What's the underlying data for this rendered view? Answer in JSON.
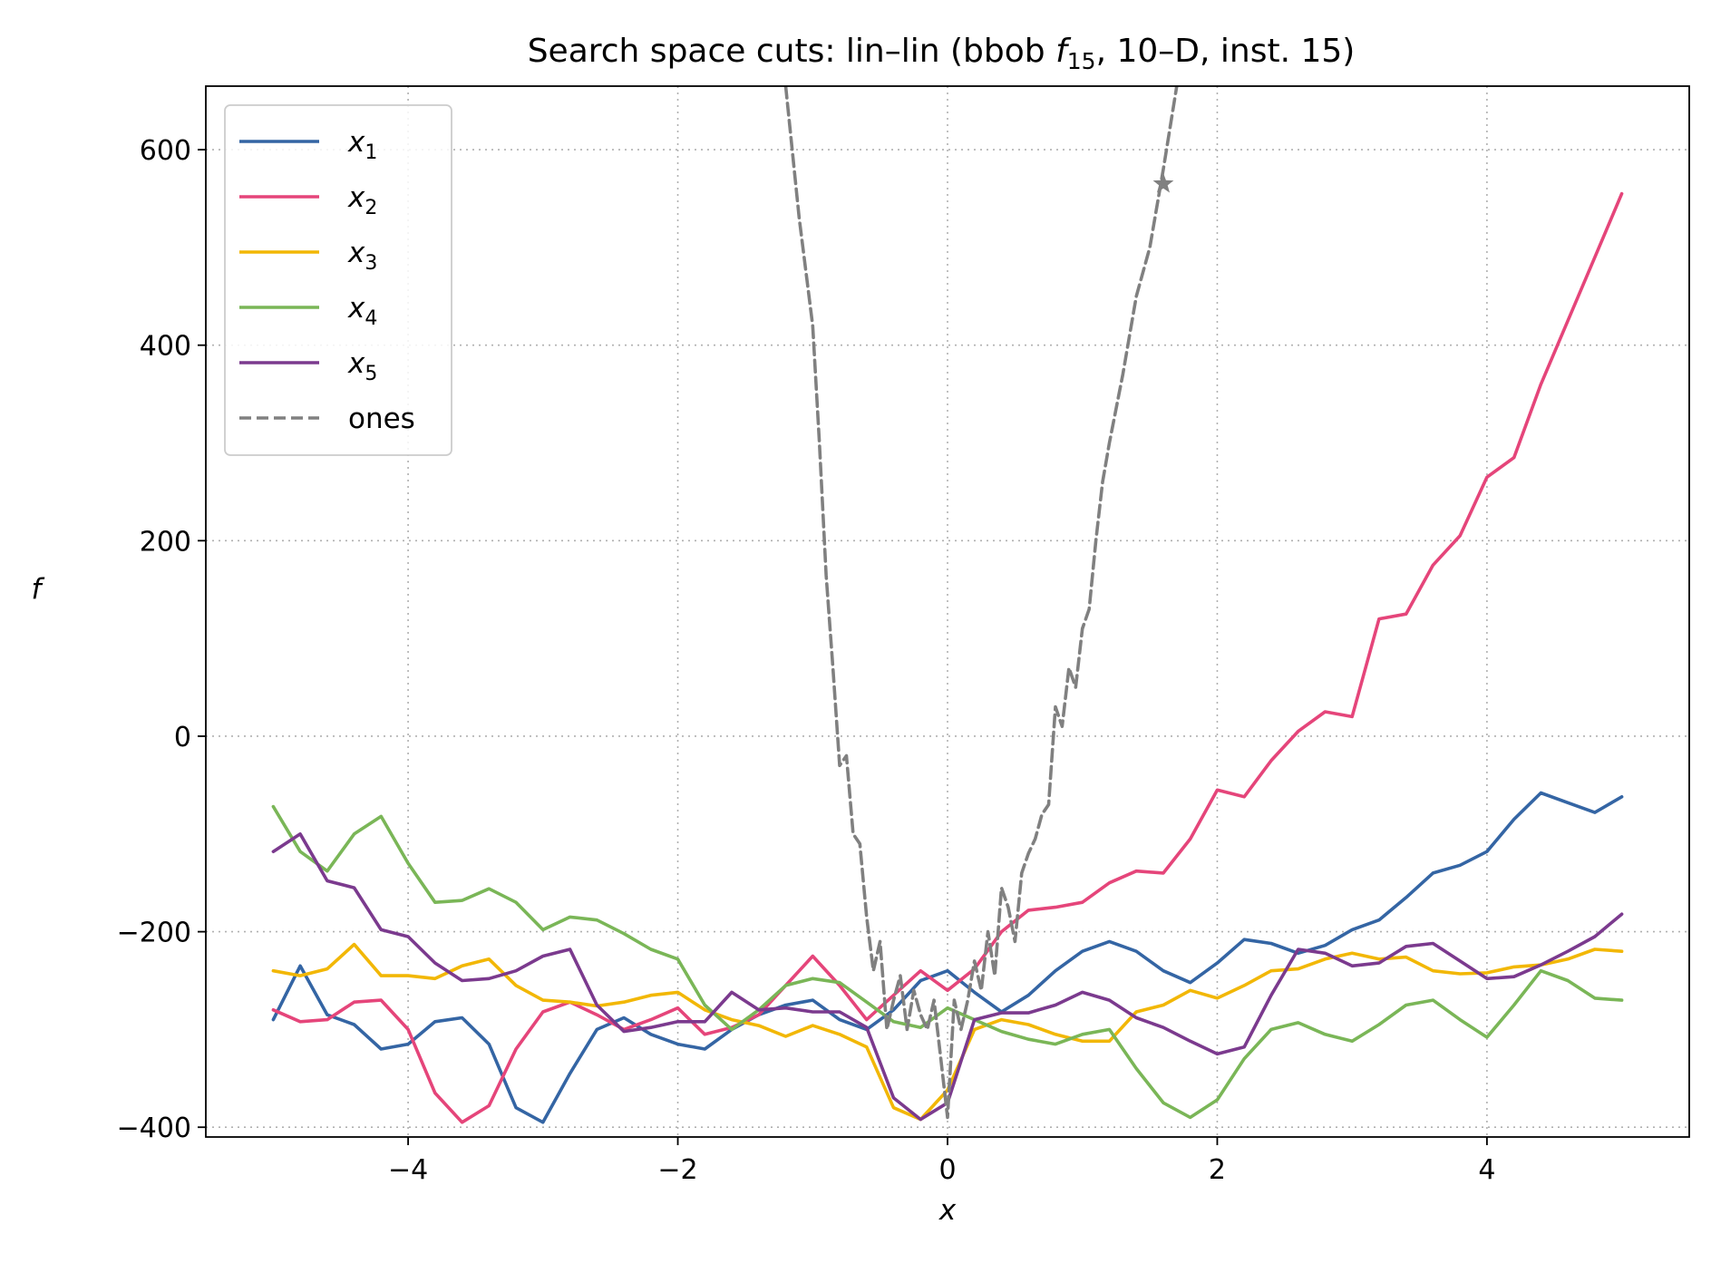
{
  "chart_data": {
    "type": "line",
    "title_prefix": "Search space cuts: lin–lin (bbob ",
    "title_func": "f",
    "title_func_sub": "15",
    "title_suffix": ", 10–D, inst. 15)",
    "xlabel": "x",
    "ylabel": "f",
    "xlim": [
      -5.5,
      5.5
    ],
    "ylim": [
      -410,
      665
    ],
    "xticks": [
      -4,
      -2,
      0,
      2,
      4
    ],
    "xtick_labels": [
      "−4",
      "−2",
      "0",
      "2",
      "4"
    ],
    "yticks": [
      -400,
      -200,
      0,
      200,
      400,
      600
    ],
    "ytick_labels": [
      "−400",
      "−200",
      "0",
      "200",
      "400",
      "600"
    ],
    "grid": true,
    "legend_position": "top-left",
    "series": [
      {
        "name": "x",
        "sub": "1",
        "color": "#3465a4",
        "dashed": false,
        "x": [
          -5.0,
          -4.8,
          -4.6,
          -4.4,
          -4.2,
          -4.0,
          -3.8,
          -3.6,
          -3.4,
          -3.2,
          -3.0,
          -2.8,
          -2.6,
          -2.4,
          -2.2,
          -2.0,
          -1.8,
          -1.6,
          -1.4,
          -1.2,
          -1.0,
          -0.8,
          -0.6,
          -0.4,
          -0.2,
          0.0,
          0.2,
          0.4,
          0.6,
          0.8,
          1.0,
          1.2,
          1.4,
          1.6,
          1.8,
          2.0,
          2.2,
          2.4,
          2.6,
          2.8,
          3.0,
          3.2,
          3.4,
          3.6,
          3.8,
          4.0,
          4.2,
          4.4,
          4.6,
          4.8,
          5.0
        ],
        "y": [
          -290,
          -235,
          -285,
          -295,
          -320,
          -315,
          -292,
          -288,
          -315,
          -380,
          -395,
          -345,
          -300,
          -288,
          -305,
          -315,
          -320,
          -300,
          -285,
          -275,
          -270,
          -290,
          -300,
          -280,
          -250,
          -240,
          -262,
          -282,
          -265,
          -240,
          -220,
          -210,
          -220,
          -240,
          -252,
          -232,
          -208,
          -212,
          -222,
          -214,
          -198,
          -188,
          -165,
          -140,
          -132,
          -118,
          -85,
          -58,
          -68,
          -78,
          -62
        ]
      },
      {
        "name": "x",
        "sub": "2",
        "color": "#e5457a",
        "dashed": false,
        "x": [
          -5.0,
          -4.8,
          -4.6,
          -4.4,
          -4.2,
          -4.0,
          -3.8,
          -3.6,
          -3.4,
          -3.2,
          -3.0,
          -2.8,
          -2.6,
          -2.4,
          -2.2,
          -2.0,
          -1.8,
          -1.6,
          -1.4,
          -1.2,
          -1.0,
          -0.8,
          -0.6,
          -0.4,
          -0.2,
          0.0,
          0.2,
          0.4,
          0.6,
          0.8,
          1.0,
          1.2,
          1.4,
          1.6,
          1.8,
          2.0,
          2.2,
          2.4,
          2.6,
          2.8,
          3.0,
          3.2,
          3.4,
          3.6,
          3.8,
          4.0,
          4.2,
          4.4,
          4.6,
          4.8,
          5.0
        ],
        "y": [
          -280,
          -292,
          -290,
          -272,
          -270,
          -300,
          -365,
          -395,
          -378,
          -320,
          -282,
          -272,
          -285,
          -300,
          -290,
          -278,
          -305,
          -298,
          -285,
          -255,
          -225,
          -255,
          -290,
          -265,
          -240,
          -260,
          -238,
          -200,
          -178,
          -175,
          -170,
          -150,
          -138,
          -140,
          -105,
          -55,
          -62,
          -25,
          5,
          25,
          20,
          120,
          125,
          175,
          205,
          265,
          285,
          360,
          425,
          490,
          555
        ]
      },
      {
        "name": "x",
        "sub": "3",
        "color": "#f2b705",
        "dashed": false,
        "x": [
          -5.0,
          -4.8,
          -4.6,
          -4.4,
          -4.2,
          -4.0,
          -3.8,
          -3.6,
          -3.4,
          -3.2,
          -3.0,
          -2.8,
          -2.6,
          -2.4,
          -2.2,
          -2.0,
          -1.8,
          -1.6,
          -1.4,
          -1.2,
          -1.0,
          -0.8,
          -0.6,
          -0.4,
          -0.2,
          0.0,
          0.2,
          0.4,
          0.6,
          0.8,
          1.0,
          1.2,
          1.4,
          1.6,
          1.8,
          2.0,
          2.2,
          2.4,
          2.6,
          2.8,
          3.0,
          3.2,
          3.4,
          3.6,
          3.8,
          4.0,
          4.2,
          4.4,
          4.6,
          4.8,
          5.0
        ],
        "y": [
          -240,
          -245,
          -238,
          -213,
          -245,
          -245,
          -248,
          -235,
          -228,
          -255,
          -270,
          -272,
          -276,
          -272,
          -265,
          -262,
          -280,
          -290,
          -296,
          -307,
          -296,
          -305,
          -318,
          -380,
          -392,
          -362,
          -300,
          -290,
          -295,
          -305,
          -312,
          -312,
          -282,
          -275,
          -260,
          -268,
          -255,
          -240,
          -238,
          -228,
          -222,
          -228,
          -226,
          -240,
          -243,
          -242,
          -236,
          -234,
          -228,
          -218,
          -220
        ]
      },
      {
        "name": "x",
        "sub": "4",
        "color": "#7ab657",
        "dashed": false,
        "x": [
          -5.0,
          -4.8,
          -4.6,
          -4.4,
          -4.2,
          -4.0,
          -3.8,
          -3.6,
          -3.4,
          -3.2,
          -3.0,
          -2.8,
          -2.6,
          -2.4,
          -2.2,
          -2.0,
          -1.8,
          -1.6,
          -1.4,
          -1.2,
          -1.0,
          -0.8,
          -0.6,
          -0.4,
          -0.2,
          0.0,
          0.2,
          0.4,
          0.6,
          0.8,
          1.0,
          1.2,
          1.4,
          1.6,
          1.8,
          2.0,
          2.2,
          2.4,
          2.6,
          2.8,
          3.0,
          3.2,
          3.4,
          3.6,
          3.8,
          4.0,
          4.2,
          4.4,
          4.6,
          4.8,
          5.0
        ],
        "y": [
          -72,
          -118,
          -138,
          -100,
          -82,
          -130,
          -170,
          -168,
          -156,
          -170,
          -198,
          -185,
          -188,
          -202,
          -218,
          -228,
          -275,
          -300,
          -280,
          -255,
          -248,
          -252,
          -272,
          -292,
          -298,
          -278,
          -290,
          -302,
          -310,
          -315,
          -305,
          -300,
          -340,
          -375,
          -390,
          -372,
          -330,
          -300,
          -293,
          -305,
          -312,
          -295,
          -275,
          -270,
          -290,
          -308,
          -275,
          -240,
          -250,
          -268,
          -270
        ]
      },
      {
        "name": "x",
        "sub": "5",
        "color": "#7b3a8e",
        "dashed": false,
        "x": [
          -5.0,
          -4.8,
          -4.6,
          -4.4,
          -4.2,
          -4.0,
          -3.8,
          -3.6,
          -3.4,
          -3.2,
          -3.0,
          -2.8,
          -2.6,
          -2.4,
          -2.2,
          -2.0,
          -1.8,
          -1.6,
          -1.4,
          -1.2,
          -1.0,
          -0.8,
          -0.6,
          -0.4,
          -0.2,
          0.0,
          0.2,
          0.4,
          0.6,
          0.8,
          1.0,
          1.2,
          1.4,
          1.6,
          1.8,
          2.0,
          2.2,
          2.4,
          2.6,
          2.8,
          3.0,
          3.2,
          3.4,
          3.6,
          3.8,
          4.0,
          4.2,
          4.4,
          4.6,
          4.8,
          5.0
        ],
        "y": [
          -118,
          -100,
          -148,
          -155,
          -198,
          -205,
          -232,
          -250,
          -248,
          -240,
          -225,
          -218,
          -275,
          -302,
          -298,
          -292,
          -292,
          -262,
          -280,
          -278,
          -282,
          -282,
          -298,
          -370,
          -392,
          -375,
          -290,
          -283,
          -283,
          -275,
          -262,
          -270,
          -288,
          -298,
          -312,
          -325,
          -318,
          -265,
          -218,
          -222,
          -235,
          -232,
          -215,
          -212,
          -230,
          -248,
          -246,
          -234,
          -220,
          -205,
          -182
        ]
      },
      {
        "name": "ones",
        "sub": "",
        "color": "#808080",
        "dashed": true,
        "x": [
          -1.2,
          -1.1,
          -1.0,
          -0.95,
          -0.9,
          -0.85,
          -0.8,
          -0.75,
          -0.7,
          -0.65,
          -0.6,
          -0.55,
          -0.5,
          -0.45,
          -0.4,
          -0.35,
          -0.3,
          -0.25,
          -0.2,
          -0.15,
          -0.1,
          -0.05,
          0.0,
          0.05,
          0.1,
          0.15,
          0.2,
          0.25,
          0.3,
          0.35,
          0.4,
          0.45,
          0.5,
          0.55,
          0.6,
          0.65,
          0.7,
          0.75,
          0.8,
          0.85,
          0.9,
          0.95,
          1.0,
          1.05,
          1.1,
          1.15,
          1.2,
          1.3,
          1.4,
          1.5,
          1.6,
          1.7
        ],
        "y": [
          665,
          530,
          420,
          300,
          165,
          70,
          -30,
          -20,
          -100,
          -110,
          -185,
          -240,
          -210,
          -300,
          -270,
          -245,
          -300,
          -260,
          -285,
          -300,
          -270,
          -330,
          -390,
          -270,
          -300,
          -270,
          -230,
          -260,
          -200,
          -245,
          -155,
          -175,
          -210,
          -140,
          -120,
          -105,
          -80,
          -70,
          30,
          10,
          70,
          50,
          110,
          130,
          200,
          260,
          300,
          370,
          450,
          500,
          580,
          665
        ]
      }
    ],
    "marker": {
      "x": 1.6,
      "y": 565,
      "shape": "star",
      "color": "#808080"
    }
  }
}
